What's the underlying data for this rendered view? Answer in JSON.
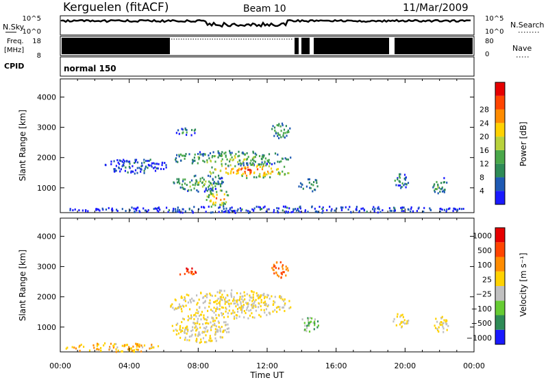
{
  "header": {
    "station": "Kerguelen (fitACF)",
    "beam": "Beam 10",
    "date": "11/Mar/2009"
  },
  "top_panel": {
    "left_label": "N.Sky",
    "right_label": "N.Search",
    "freq_label_1": "Freq.",
    "freq_label_2": "[MHz]",
    "nave_label": "Nave",
    "cpid_label": "CPID",
    "cpid_value": "normal 150",
    "nsky_ticks": [
      "10^5",
      "10^0"
    ],
    "nsearch_ticks": [
      "10^5",
      "10^0"
    ],
    "freq_ticks": [
      "18",
      "8"
    ],
    "nave_ticks": [
      "80",
      "0"
    ]
  },
  "colors": {
    "power_scale": [
      "#1a1aff",
      "#1f5ab4",
      "#2e8b57",
      "#4aa84a",
      "#b8d23c",
      "#ffd200",
      "#ff8c00",
      "#ff4500",
      "#e60000"
    ],
    "velocity_scale": [
      "#1a1aff",
      "#2e8b57",
      "#66cc33",
      "#c0c0c0",
      "#ffd200",
      "#ff8c00",
      "#ff4500",
      "#e60000"
    ]
  },
  "chart_data": [
    {
      "type": "heatmap",
      "name": "power",
      "xlabel": "Time UT",
      "ylabel": "Slant Range [km]",
      "xlim": [
        0,
        24
      ],
      "ylim": [
        180,
        4600
      ],
      "x_ticks": [
        "00:00",
        "04:00",
        "08:00",
        "12:00",
        "16:00",
        "20:00",
        "00:00"
      ],
      "y_ticks": [
        1000,
        2000,
        3000,
        4000
      ],
      "colorbar_label": "Power [dB]",
      "colorbar_ticks": [
        "4",
        "8",
        "12",
        "16",
        "20",
        "24",
        "28"
      ],
      "regions": [
        {
          "t": [
            6.3,
            13.4
          ],
          "r": [
            1750,
            2250
          ],
          "level": 0.5
        },
        {
          "t": [
            8.5,
            13.4
          ],
          "r": [
            1350,
            1850
          ],
          "level": 0.92
        },
        {
          "t": [
            6.4,
            9.8
          ],
          "r": [
            900,
            1450
          ],
          "level": 0.45
        },
        {
          "t": [
            8.4,
            9.8
          ],
          "r": [
            350,
            1000
          ],
          "level": 0.85
        },
        {
          "t": [
            6.6,
            8.0
          ],
          "r": [
            2750,
            3000
          ],
          "level": 0.3
        },
        {
          "t": [
            12.2,
            13.3
          ],
          "r": [
            2650,
            3200
          ],
          "level": 0.45
        },
        {
          "t": [
            13.8,
            15.0
          ],
          "r": [
            850,
            1350
          ],
          "level": 0.35
        },
        {
          "t": [
            19.2,
            20.2
          ],
          "r": [
            1000,
            1500
          ],
          "level": 0.35
        },
        {
          "t": [
            21.5,
            22.5
          ],
          "r": [
            800,
            1400
          ],
          "level": 0.4
        },
        {
          "t": [
            2.5,
            6.3
          ],
          "r": [
            1500,
            2000
          ],
          "level": 0.2
        },
        {
          "t": [
            0.2,
            24
          ],
          "r": [
            200,
            420
          ],
          "level": 0.15
        }
      ]
    },
    {
      "type": "heatmap",
      "name": "velocity",
      "xlabel": "Time UT",
      "ylabel": "Slant Range [km]",
      "xlim": [
        0,
        24
      ],
      "ylim": [
        180,
        4600
      ],
      "x_ticks": [
        "00:00",
        "04:00",
        "08:00",
        "12:00",
        "16:00",
        "20:00",
        "00:00"
      ],
      "y_ticks": [
        1000,
        2000,
        3000,
        4000
      ],
      "colorbar_label": "Velocity [m s⁻¹]",
      "colorbar_ticks": [
        "1000",
        "500",
        "100",
        "25",
        "−25",
        "−100",
        "−500",
        "−1000"
      ],
      "regions": [
        {
          "t": [
            6.3,
            13.4
          ],
          "r": [
            1300,
            2250
          ],
          "level": 0.5
        },
        {
          "t": [
            6.4,
            9.8
          ],
          "r": [
            500,
            1450
          ],
          "level": 0.5
        },
        {
          "t": [
            6.6,
            8.0
          ],
          "r": [
            2750,
            3000
          ],
          "level": 0.8
        },
        {
          "t": [
            12.2,
            13.3
          ],
          "r": [
            2650,
            3200
          ],
          "level": 0.75
        },
        {
          "t": [
            13.8,
            15.0
          ],
          "r": [
            850,
            1350
          ],
          "level": 0.3
        },
        {
          "t": [
            19.2,
            20.2
          ],
          "r": [
            1000,
            1500
          ],
          "level": 0.5
        },
        {
          "t": [
            21.5,
            22.5
          ],
          "r": [
            800,
            1400
          ],
          "level": 0.5
        },
        {
          "t": [
            0.2,
            6.0
          ],
          "r": [
            200,
            500
          ],
          "level": 0.6
        }
      ]
    }
  ]
}
